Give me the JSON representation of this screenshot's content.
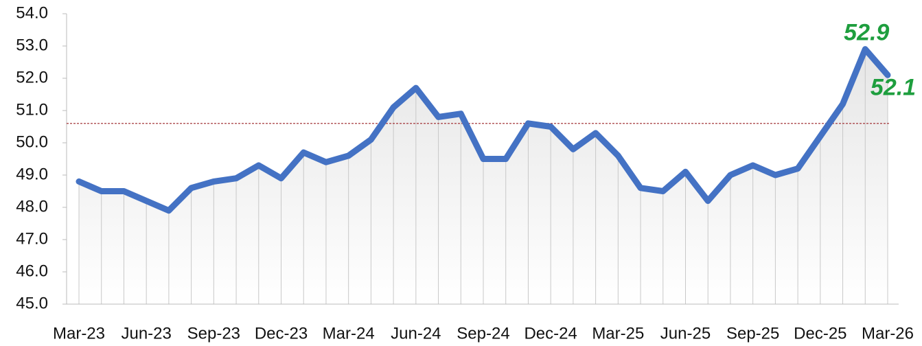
{
  "chart_data": {
    "type": "line",
    "categories": [
      "Mar-23",
      null,
      null,
      "Jun-23",
      null,
      null,
      "Sep-23",
      null,
      null,
      "Dec-23",
      null,
      null,
      "Mar-24",
      null,
      null,
      "Jun-24",
      null,
      null,
      "Sep-24",
      null,
      null,
      "Dec-24",
      null,
      null,
      "Mar-25",
      null,
      null,
      "Jun-25",
      null,
      null,
      "Sep-25",
      null,
      null,
      "Dec-25",
      null,
      null,
      "Mar-26"
    ],
    "series": [
      {
        "color": "#4472c4",
        "values": [
          48.8,
          48.5,
          48.5,
          48.2,
          47.9,
          48.6,
          48.8,
          48.9,
          49.3,
          48.9,
          49.7,
          49.4,
          49.6,
          50.1,
          51.1,
          51.7,
          50.8,
          50.9,
          49.5,
          49.5,
          50.6,
          50.5,
          49.8,
          50.3,
          49.6,
          48.6,
          48.5,
          49.1,
          48.2,
          49.0,
          49.3,
          49.0,
          49.2,
          50.2,
          51.2,
          52.9,
          52.1
        ],
        "value_labels": [
          null,
          null,
          null,
          null,
          null,
          null,
          null,
          null,
          null,
          null,
          null,
          null,
          null,
          null,
          null,
          null,
          null,
          null,
          null,
          null,
          null,
          null,
          null,
          null,
          null,
          null,
          null,
          null,
          null,
          null,
          null,
          null,
          null,
          null,
          null,
          "52.9",
          "52.1"
        ],
        "value_label_color": "#1e9e3e"
      }
    ],
    "reference_line": {
      "value": 50.6,
      "color": "#9b2226"
    },
    "ylim": [
      45,
      54
    ],
    "yticks": [
      {
        "value": 45,
        "label": "45.0"
      },
      {
        "value": 46,
        "label": "46.0"
      },
      {
        "value": 47,
        "label": "47.0"
      },
      {
        "value": 48,
        "label": "48.0"
      },
      {
        "value": 49,
        "label": "49.0"
      },
      {
        "value": 50,
        "label": "50.0"
      },
      {
        "value": 51,
        "label": "51.0"
      },
      {
        "value": 52,
        "label": "52.0"
      },
      {
        "value": 53,
        "label": "53.0"
      },
      {
        "value": 54,
        "label": "54.0"
      }
    ],
    "drop_lines": true
  }
}
